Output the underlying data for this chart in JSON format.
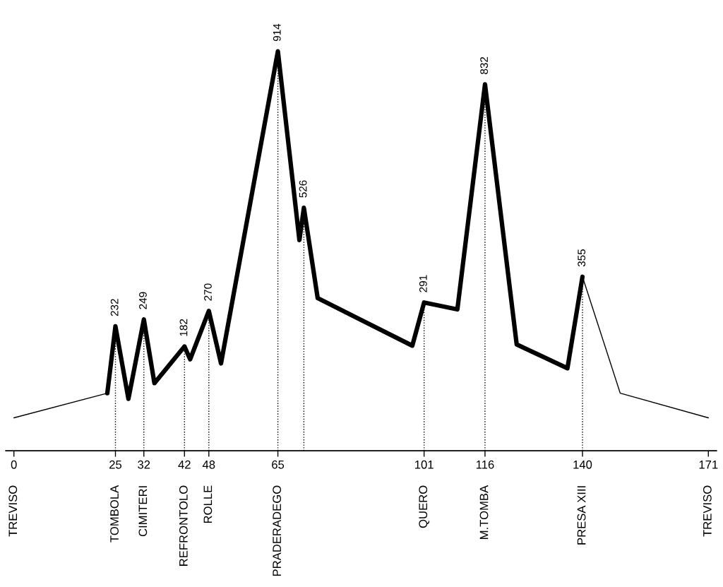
{
  "chart_data": {
    "type": "line",
    "tick_labels": "x",
    "marker": "none",
    "line_style": "solid",
    "xlim": [
      -2,
      173
    ],
    "xticks": [
      0,
      25,
      32,
      42,
      48,
      65,
      101,
      116,
      140,
      171
    ],
    "annotations": [
      "TREVISO",
      "TOMBOLA",
      "CIMITERI",
      "REFRONTOLO",
      "ROLLE",
      "PRADERADEGO",
      "QUERO",
      "M.TOMBA",
      "PRESA XIII",
      "TREVISO"
    ],
    "series": [
      {
        "color": "#000000",
        "x": [
          0,
          23
        ],
        "values": [
          5,
          66
        ],
        "value_labels": [
          null,
          null
        ]
      },
      {
        "color": "#000000",
        "x": [
          23,
          25,
          28.2,
          32,
          34.6,
          42,
          43.4,
          48,
          51,
          65,
          70.3,
          71.4,
          74.8,
          98.1,
          101,
          109.2,
          116,
          123.8,
          136.3,
          140
        ],
        "values": [
          66,
          232,
          52,
          249,
          91,
          182,
          150,
          270,
          140,
          914,
          446,
          526,
          302,
          184,
          291,
          274,
          832,
          187,
          128,
          355
        ],
        "value_labels": [
          null,
          "232",
          null,
          "249",
          null,
          "182",
          null,
          "270",
          null,
          "914",
          null,
          "526",
          null,
          null,
          "291",
          null,
          "832",
          null,
          null,
          "355"
        ]
      },
      {
        "color": "#000000",
        "x": [
          140,
          149.3,
          171
        ],
        "values": [
          355,
          66,
          5
        ],
        "value_labels": [
          null,
          null,
          null
        ]
      }
    ]
  }
}
